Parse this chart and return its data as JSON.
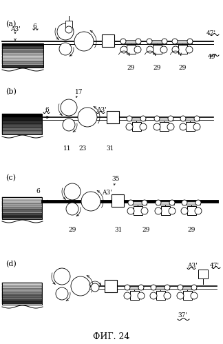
{
  "title": "ФИГ. 24",
  "bg_color": "#ffffff",
  "line_color": "#000000",
  "figure_width": 3.24,
  "figure_height": 4.99,
  "dpi": 100,
  "panels": [
    "(a)",
    "(b)",
    "(c)",
    "(d)"
  ],
  "title_fontsize": 9,
  "panel_fontsize": 8,
  "label_fontsize": 6.5
}
